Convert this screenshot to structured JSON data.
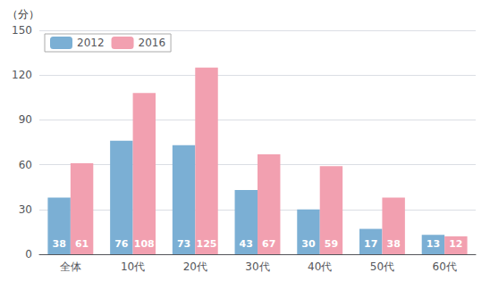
{
  "chart_data": {
    "type": "bar",
    "ylabel": "（分）",
    "categories": [
      "全体",
      "10代",
      "20代",
      "30代",
      "40代",
      "50代",
      "60代"
    ],
    "series": [
      {
        "name": "2012",
        "color": "#7bafd4",
        "values": [
          38,
          76,
          73,
          43,
          30,
          17,
          13
        ]
      },
      {
        "name": "2016",
        "color": "#f2a0b0",
        "values": [
          61,
          108,
          125,
          67,
          59,
          38,
          12
        ]
      }
    ],
    "ylim": [
      0,
      150
    ],
    "yticks": [
      0,
      30,
      60,
      90,
      120,
      150
    ],
    "grid": true,
    "legend": "upper left",
    "data_labels": true
  }
}
